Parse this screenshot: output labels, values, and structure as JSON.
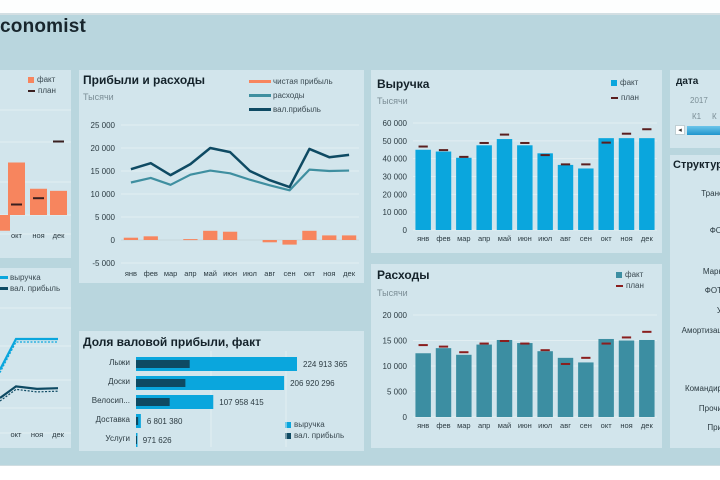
{
  "app": {
    "title": "conomist"
  },
  "colors": {
    "fact_orange": "#f7855e",
    "plan_mark": "#5a1f1f",
    "revenue_blue": "#0aa6dd",
    "expense_teal": "#3c8ea2",
    "gross_dark": "#0e4a63",
    "expense_line": "#3f8fa0"
  },
  "months": [
    "янв",
    "фев",
    "мар",
    "апр",
    "май",
    "июн",
    "июл",
    "авг",
    "сен",
    "окт",
    "ноя",
    "дек"
  ],
  "left_top": {
    "legend": {
      "fact": "факт",
      "plan": "план"
    },
    "x_labels": [
      "окт",
      "ноя",
      "дек"
    ]
  },
  "left_bottom": {
    "legend": {
      "revenue": "выручка",
      "gross": "вал. прибыль"
    },
    "x_labels": [
      "окт",
      "ноя",
      "дек"
    ]
  },
  "slicer": {
    "title": "дата",
    "year": "2017",
    "quarters": [
      "К1",
      "К"
    ],
    "scroll_left": "◂"
  },
  "structure": {
    "title": "Структур",
    "items": [
      "Транс",
      "ФО",
      "Марк",
      "ФОТ",
      "У",
      "Амортизац",
      "Командир",
      "Прочи",
      "При"
    ]
  },
  "chart_data": [
    {
      "id": "profit",
      "type": "line",
      "title": "Прибыли и расходы",
      "subtitle": "Тысячи",
      "xlabel": "",
      "ylabel": "",
      "categories": [
        "янв",
        "фев",
        "мар",
        "апр",
        "май",
        "июн",
        "июл",
        "авг",
        "сен",
        "окт",
        "ноя",
        "дек"
      ],
      "ylim": [
        -5000,
        25000
      ],
      "yticks": [
        25000,
        20000,
        15000,
        10000,
        5000,
        0,
        -5000
      ],
      "ytick_labels": [
        "25 000",
        "20 000",
        "15 000",
        "10 000",
        "5 000",
        "0",
        "-5 000"
      ],
      "grid": true,
      "legend_position": "top-right",
      "series": [
        {
          "name": "чистая прибыль",
          "kind": "bar",
          "values": [
            500,
            800,
            0,
            200,
            2000,
            1800,
            0,
            -500,
            -1000,
            2000,
            1000,
            1000
          ]
        },
        {
          "name": "расходы",
          "kind": "line",
          "values": [
            12500,
            13500,
            12000,
            14200,
            15100,
            14500,
            13100,
            11900,
            10800,
            15300,
            15000,
            15100
          ]
        },
        {
          "name": "вал.прибыль",
          "kind": "line",
          "values": [
            15400,
            16700,
            14100,
            16500,
            20000,
            19100,
            15000,
            13000,
            11500,
            19800,
            18000,
            18500
          ]
        }
      ]
    },
    {
      "id": "revenue",
      "type": "bar",
      "title": "Выручка",
      "subtitle": "Тысячи",
      "xlabel": "",
      "ylabel": "",
      "categories": [
        "янв",
        "фев",
        "мар",
        "апр",
        "май",
        "июн",
        "июл",
        "авг",
        "сен",
        "окт",
        "ноя",
        "дек"
      ],
      "ylim": [
        0,
        60000
      ],
      "yticks": [
        60000,
        50000,
        40000,
        30000,
        20000,
        10000,
        0
      ],
      "ytick_labels": [
        "60 000",
        "50 000",
        "40 000",
        "30 000",
        "20 000",
        "10 000",
        "0"
      ],
      "grid": true,
      "legend_position": "top-right",
      "series": [
        {
          "name": "факт",
          "values": [
            45000,
            44000,
            40500,
            47500,
            51000,
            47500,
            43000,
            36500,
            34500,
            51500,
            51500,
            51500
          ]
        },
        {
          "name": "план",
          "values": [
            46800,
            44800,
            41000,
            48800,
            53500,
            48800,
            42000,
            36800,
            36800,
            49000,
            54000,
            56500
          ]
        }
      ]
    },
    {
      "id": "expenses",
      "type": "bar",
      "title": "Расходы",
      "subtitle": "Тысячи",
      "xlabel": "",
      "ylabel": "",
      "categories": [
        "янв",
        "фев",
        "мар",
        "апр",
        "май",
        "июн",
        "июл",
        "авг",
        "сен",
        "окт",
        "ноя",
        "дек"
      ],
      "ylim": [
        0,
        20000
      ],
      "yticks": [
        20000,
        15000,
        10000,
        5000,
        0
      ],
      "ytick_labels": [
        "20 000",
        "15 000",
        "10 000",
        "5 000",
        "0"
      ],
      "grid": true,
      "legend_position": "top-right",
      "series": [
        {
          "name": "факт",
          "values": [
            12500,
            13500,
            12200,
            14200,
            15100,
            14500,
            12900,
            11600,
            10700,
            15300,
            15000,
            15100
          ]
        },
        {
          "name": "план",
          "values": [
            14100,
            13800,
            12700,
            14400,
            14900,
            14400,
            13100,
            10400,
            11600,
            14400,
            15600,
            16700
          ]
        }
      ]
    },
    {
      "id": "gross_share",
      "type": "bar",
      "orientation": "horizontal",
      "title": "Доля валовой прибыли, факт",
      "xlabel": "",
      "ylabel": "",
      "categories": [
        "Лыжи",
        "Доски",
        "Велосип...",
        "Доставка",
        "Услуги"
      ],
      "value_labels": [
        "224 913 365",
        "206 920 296",
        "107 958 415",
        "6 801 380",
        "971 626"
      ],
      "xlim": [
        0,
        224913365
      ],
      "legend_position": "bottom-right",
      "series": [
        {
          "name": "выручка",
          "values": [
            224913365,
            206920296,
            107958415,
            6801380,
            971626
          ]
        },
        {
          "name": "вал. прибыль",
          "values": [
            75000000,
            69000000,
            47000000,
            3000000,
            400000
          ]
        }
      ]
    },
    {
      "id": "left_top_partial",
      "type": "bar",
      "title": "",
      "categories": [
        "сен",
        "окт",
        "ноя",
        "дек"
      ],
      "series": [
        {
          "name": "факт",
          "values": [
            -1500,
            5000,
            2500,
            2300
          ]
        },
        {
          "name": "план",
          "values": [
            null,
            1000,
            1600,
            7000
          ]
        }
      ]
    },
    {
      "id": "left_bottom_partial",
      "type": "line",
      "title": "",
      "categories": [
        "сен",
        "окт",
        "ноя",
        "дек"
      ],
      "series": [
        {
          "name": "выручка",
          "values": [
            34500,
            51500,
            51500,
            51500
          ]
        },
        {
          "name": "вал. прибыль",
          "values": [
            11500,
            19800,
            18000,
            18500
          ]
        }
      ]
    }
  ]
}
